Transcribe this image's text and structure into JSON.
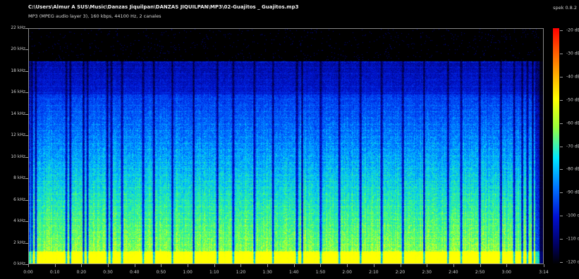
{
  "window": {
    "title": "C:\\Users\\Almur A SUS\\Music\\Danzas Jiquilpan\\DANZAS JIQUILPAN\\MP3\\02-Guajitos _ Guajitos.mp3",
    "file_info": "MP3 (MPEG audio layer 3), 160 kbps, 44100 Hz, 2 canales",
    "app_version": "spek 0.8.2"
  },
  "axes": {
    "frequency_labels": [
      "22 kHz",
      "20 kHz",
      "18 kHz",
      "16 kHz",
      "14 kHz",
      "12 kHz",
      "10 kHz",
      "8 kHz",
      "6 kHz",
      "4 kHz",
      "2 kHz",
      "0 kHz"
    ],
    "time_labels": [
      "0:00",
      "0:10",
      "0:20",
      "0:30",
      "0:40",
      "0:50",
      "1:00",
      "1:10",
      "1:20",
      "1:30",
      "1:40",
      "1:50",
      "2:00",
      "2:10",
      "2:20",
      "2:30",
      "2:40",
      "2:50",
      "3:00",
      "3:14"
    ],
    "db_labels": [
      "-20 dB",
      "-30 dB",
      "-40 dB",
      "-50 dB",
      "-60 dB",
      "-70 dB",
      "-80 dB",
      "-90 dB",
      "-100 dB",
      "-110 dB",
      "-120 dB"
    ]
  },
  "spectrogram": {
    "duration_seconds": 194,
    "max_frequency_khz": 22,
    "content_cutoff_khz": 19,
    "lowpass_band_khz": 16,
    "quiet_moments_seconds": [
      1,
      2.5,
      14,
      15.5,
      20.5,
      22,
      29.5,
      31,
      35,
      43,
      47,
      54,
      62,
      71,
      77,
      85,
      92,
      101,
      103,
      110,
      117,
      125,
      133,
      141,
      149,
      158,
      163,
      170,
      178,
      183,
      186,
      188,
      190
    ],
    "colors": {
      "low": "#000080",
      "mid_low": "#0050ff",
      "mid": "#00c8ff",
      "mid_high": "#3cff78",
      "high": "#ffff00"
    }
  }
}
